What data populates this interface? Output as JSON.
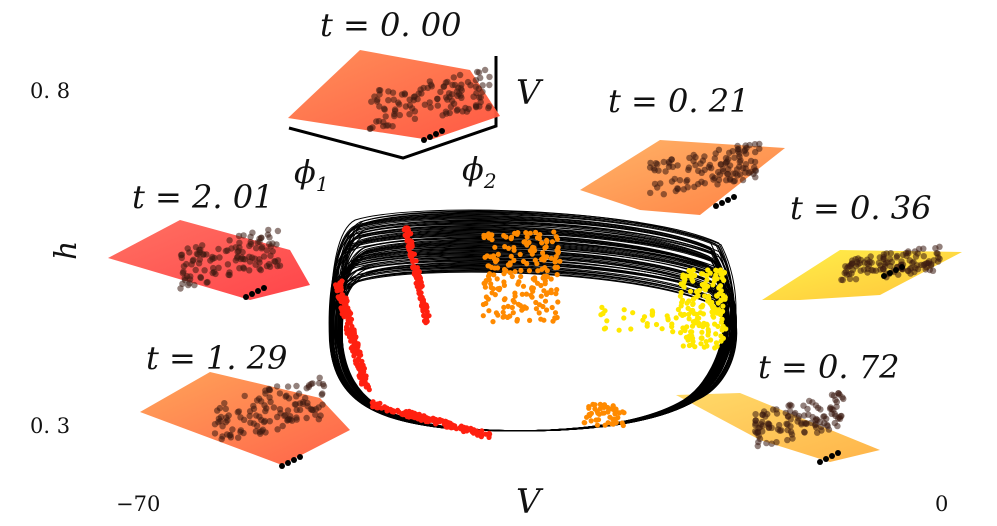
{
  "axes": {
    "x_label": "V",
    "y_label": "h",
    "x_min_label": "−70",
    "x_max_label": "0",
    "y_top_label": "0. 8",
    "y_bottom_label": "0. 3"
  },
  "inset_axes": {
    "vertical": "V",
    "phi1": "ϕ",
    "phi1_sub": "1",
    "phi2": "ϕ",
    "phi2_sub": "2"
  },
  "snapshots": [
    {
      "label": "t = 0. 00",
      "color": "#ff6a40"
    },
    {
      "label": "t = 0. 21",
      "color": "#ff9a40"
    },
    {
      "label": "t = 0. 36",
      "color": "#ffe030"
    },
    {
      "label": "t = 0. 72",
      "color": "#ffc840"
    },
    {
      "label": "t = 1. 29",
      "color": "#ff8040"
    },
    {
      "label": "t = 2. 01",
      "color": "#ff5050"
    }
  ],
  "colors": {
    "orbit": "#000000",
    "red_pts": "#ff2010",
    "orange_pts": "#ff8a00",
    "yellow_pts": "#ffe800"
  }
}
